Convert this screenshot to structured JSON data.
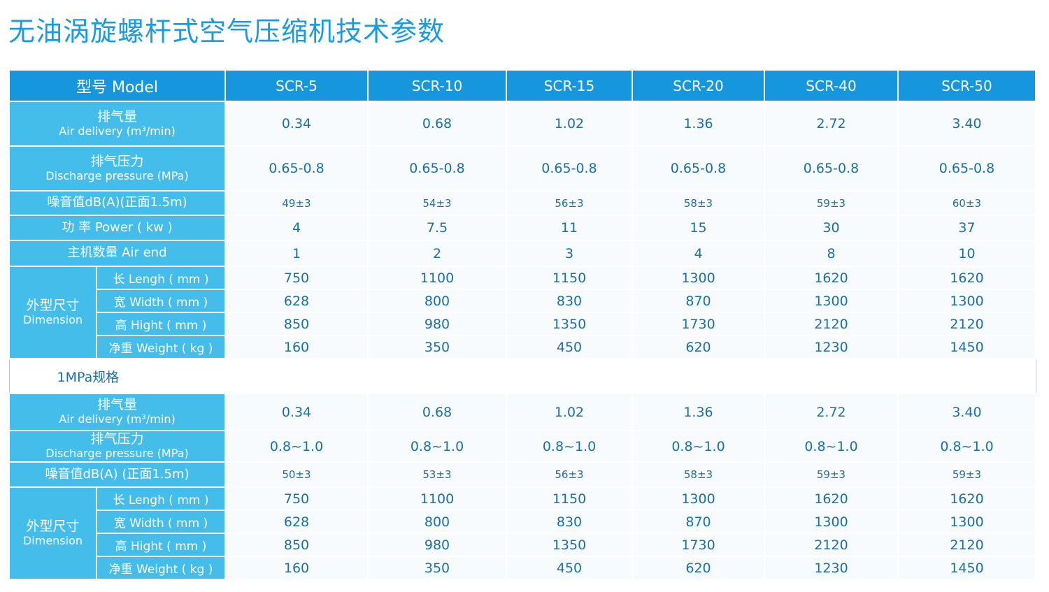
{
  "title": "无油涡旋螺杆式空气压缩机技术参数",
  "header": {
    "model_label": "型号    Model",
    "models": [
      "SCR-5",
      "SCR-10",
      "SCR-15",
      "SCR-20",
      "SCR-40",
      "SCR-50"
    ]
  },
  "table1": {
    "air_delivery": {
      "cn": "排气量",
      "en": "Air delivery (m³/min)",
      "values": [
        "0.34",
        "0.68",
        "1.02",
        "1.36",
        "2.72",
        "3.40"
      ]
    },
    "discharge_pressure": {
      "cn": "排气压力",
      "en": "Discharge pressure (MPa)",
      "values": [
        "0.65-0.8",
        "0.65-0.8",
        "0.65-0.8",
        "0.65-0.8",
        "0.65-0.8",
        "0.65-0.8"
      ]
    },
    "noise": {
      "label": "噪音值dB(A)(正面1.5m)",
      "values": [
        "49±3",
        "54±3",
        "56±3",
        "58±3",
        "59±3",
        "60±3"
      ]
    },
    "power": {
      "label": "功 率        Power ( kw )",
      "values": [
        "4",
        "7.5",
        "11",
        "15",
        "30",
        "37"
      ]
    },
    "air_end": {
      "label": "主机数量    Air end",
      "values": [
        "1",
        "2",
        "3",
        "4",
        "8",
        "10"
      ]
    },
    "dimension": {
      "cn": "外型尺寸",
      "en": "Dimension",
      "rows": [
        {
          "label": "长  Lengh ( mm )",
          "values": [
            "750",
            "1100",
            "1150",
            "1300",
            "1620",
            "1620"
          ]
        },
        {
          "label": "宽  Width ( mm )",
          "values": [
            "628",
            "800",
            "830",
            "870",
            "1300",
            "1300"
          ]
        },
        {
          "label": "高  Hight ( mm )",
          "values": [
            "850",
            "980",
            "1350",
            "1730",
            "2120",
            "2120"
          ]
        },
        {
          "label": "净重 Weight ( kg )",
          "values": [
            "160",
            "350",
            "450",
            "620",
            "1230",
            "1450"
          ]
        }
      ]
    }
  },
  "section2_label": "1MPa规格",
  "table2": {
    "air_delivery": {
      "cn": "排气量",
      "en": "Air delivery (m³/min)",
      "values": [
        "0.34",
        "0.68",
        "1.02",
        "1.36",
        "2.72",
        "3.40"
      ]
    },
    "discharge_pressure": {
      "cn": "排气压力",
      "en": "Discharge pressure (MPa)",
      "values": [
        "0.8~1.0",
        "0.8~1.0",
        "0.8~1.0",
        "0.8~1.0",
        "0.8~1.0",
        "0.8~1.0"
      ]
    },
    "noise": {
      "label": "噪音值dB(A)   (正面1.5m)",
      "values": [
        "50±3",
        "53±3",
        "56±3",
        "58±3",
        "59±3",
        "59±3"
      ]
    },
    "dimension": {
      "cn": "外型尺寸",
      "en": "Dimension",
      "rows": [
        {
          "label": "长  Lengh ( mm )",
          "values": [
            "750",
            "1100",
            "1150",
            "1300",
            "1620",
            "1620"
          ]
        },
        {
          "label": "宽  Width ( mm )",
          "values": [
            "628",
            "800",
            "830",
            "870",
            "1300",
            "1300"
          ]
        },
        {
          "label": "高  Hight ( mm )",
          "values": [
            "850",
            "980",
            "1350",
            "1730",
            "2120",
            "2120"
          ]
        },
        {
          "label": "净重 Weight ( kg )",
          "values": [
            "160",
            "350",
            "450",
            "620",
            "1230",
            "1450"
          ]
        }
      ]
    }
  },
  "colors": {
    "title": "#1a9be0",
    "header_bg": "#1697dd",
    "label_bg": "#45bdea",
    "value_text": "#1b6fa8"
  }
}
